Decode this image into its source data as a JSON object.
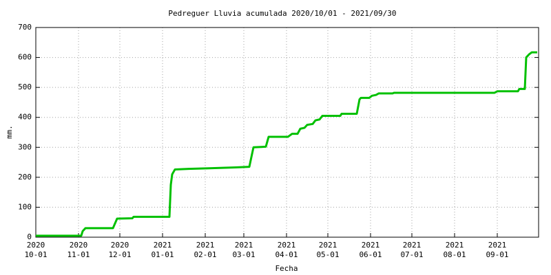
{
  "chart_data": {
    "type": "line",
    "title": "Pedreguer Lluvia acumulada 2020/10/01 - 2021/09/30",
    "x_label": "Fecha",
    "y_label": "mm.",
    "color": "#00c000",
    "grid": true,
    "xlim": [
      "2020-10-01",
      "2021-10-01"
    ],
    "xticks": [
      {
        "value": "2020-10-01",
        "label": "2020\n10-01"
      },
      {
        "value": "2020-11-01",
        "label": "2020\n11-01"
      },
      {
        "value": "2020-12-01",
        "label": "2020\n12-01"
      },
      {
        "value": "2021-01-01",
        "label": "2021\n01-01"
      },
      {
        "value": "2021-02-01",
        "label": "2021\n02-01"
      },
      {
        "value": "2021-03-01",
        "label": "2021\n03-01"
      },
      {
        "value": "2021-04-01",
        "label": "2021\n04-01"
      },
      {
        "value": "2021-05-01",
        "label": "2021\n05-01"
      },
      {
        "value": "2021-06-01",
        "label": "2021\n06-01"
      },
      {
        "value": "2021-07-01",
        "label": "2021\n07-01"
      },
      {
        "value": "2021-08-01",
        "label": "2021\n08-01"
      },
      {
        "value": "2021-09-01",
        "label": "2021\n09-01"
      }
    ],
    "ylim": [
      0,
      700
    ],
    "yticks": [
      0,
      100,
      200,
      300,
      400,
      500,
      600,
      700
    ],
    "x": [
      "2020-10-01",
      "2020-11-03",
      "2020-11-04",
      "2020-11-06",
      "2020-11-26",
      "2020-11-29",
      "2020-12-10",
      "2020-12-11",
      "2021-01-06",
      "2021-01-07",
      "2021-01-08",
      "2021-01-10",
      "2021-01-20",
      "2021-02-04",
      "2021-02-23",
      "2021-03-05",
      "2021-03-08",
      "2021-03-17",
      "2021-03-19",
      "2021-04-02",
      "2021-04-05",
      "2021-04-09",
      "2021-04-11",
      "2021-04-14",
      "2021-04-16",
      "2021-04-20",
      "2021-04-22",
      "2021-04-25",
      "2021-04-27",
      "2021-05-10",
      "2021-05-11",
      "2021-05-22",
      "2021-05-24",
      "2021-05-25",
      "2021-05-31",
      "2021-06-02",
      "2021-06-05",
      "2021-06-07",
      "2021-06-17",
      "2021-06-18",
      "2021-08-30",
      "2021-09-01",
      "2021-09-16",
      "2021-09-17",
      "2021-09-21",
      "2021-09-22",
      "2021-09-24",
      "2021-09-26",
      "2021-09-30"
    ],
    "values": [
      5,
      5,
      20,
      30,
      30,
      62,
      63,
      68,
      68,
      175,
      210,
      226,
      228,
      230,
      233,
      235,
      300,
      302,
      335,
      335,
      345,
      345,
      362,
      365,
      375,
      378,
      390,
      393,
      405,
      405,
      412,
      412,
      460,
      465,
      465,
      472,
      475,
      480,
      480,
      482,
      482,
      487,
      487,
      495,
      495,
      600,
      610,
      617,
      617
    ]
  }
}
